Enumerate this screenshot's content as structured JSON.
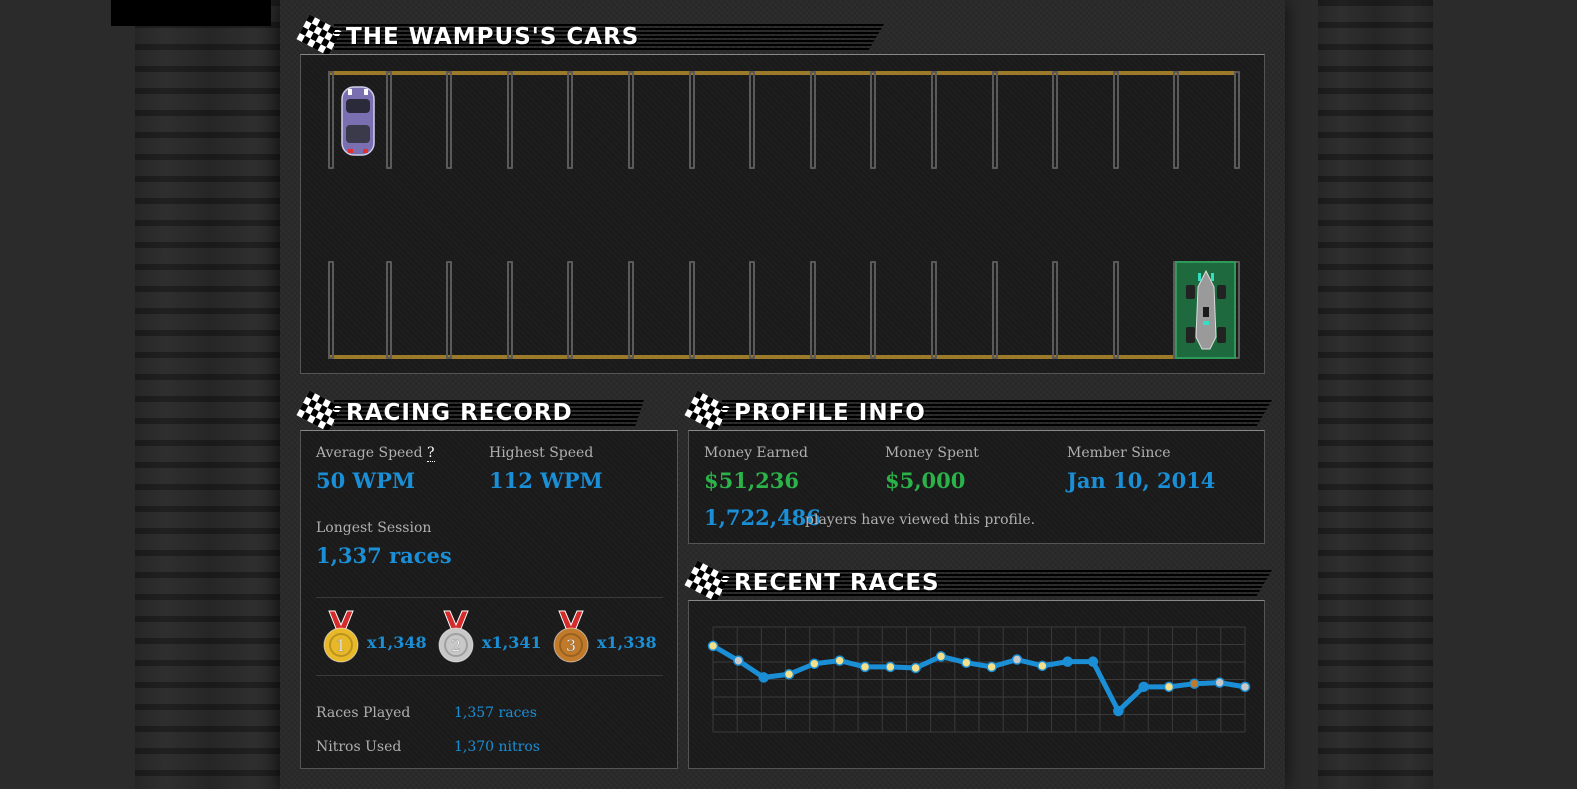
{
  "garage": {
    "title": "The Wampus's Cars",
    "slots_per_row": 15
  },
  "racing_record": {
    "title": "Racing Record",
    "avg_speed_label": "Average Speed",
    "avg_speed_help": "?",
    "avg_speed_value": "50 WPM",
    "highest_speed_label": "Highest Speed",
    "highest_speed_value": "112 WPM",
    "longest_session_label": "Longest Session",
    "longest_session_value": "1,337 races",
    "medals": [
      {
        "place": "1",
        "count": "x1,348",
        "color": "#e8b828"
      },
      {
        "place": "2",
        "count": "x1,341",
        "color": "#c8c8c8"
      },
      {
        "place": "3",
        "count": "x1,338",
        "color": "#c07a2a"
      }
    ],
    "races_played_label": "Races Played",
    "races_played_value": "1,357 races",
    "nitros_used_label": "Nitros Used",
    "nitros_used_value": "1,370 nitros"
  },
  "profile_info": {
    "title": "Profile Info",
    "money_earned_label": "Money Earned",
    "money_earned_value": "$51,236",
    "money_spent_label": "Money Spent",
    "money_spent_value": "$5,000",
    "member_since_label": "Member Since",
    "member_since_value": "Jan 10, 2014",
    "views_value": "1,722,486",
    "views_text": "players have viewed this profile."
  },
  "recent_races": {
    "title": "Recent Races"
  },
  "chart_data": {
    "type": "line",
    "x": [
      1,
      2,
      3,
      4,
      5,
      6,
      7,
      8,
      9,
      10,
      11,
      12,
      13,
      14,
      15,
      16,
      17,
      18,
      19,
      20,
      21,
      22
    ],
    "series": [
      {
        "values": [
          82,
          68,
          52,
          55,
          65,
          68,
          62,
          62,
          61,
          72,
          66,
          62,
          69,
          63,
          67,
          67,
          20,
          43,
          43,
          46,
          47,
          43
        ]
      }
    ],
    "point_colors": [
      "#f4e08a",
      "#c8c8c8",
      "#1b8fd6",
      "#f4e08a",
      "#f4e08a",
      "#f4e08a",
      "#f4e08a",
      "#f4e08a",
      "#f4e08a",
      "#f4e08a",
      "#f4e08a",
      "#f4e08a",
      "#c8c8c8",
      "#f4e08a",
      "#1b8fd6",
      "#1b8fd6",
      "#1b8fd6",
      "#1b8fd6",
      "#f4e08a",
      "#c07a2a",
      "#c8c8c8",
      "#c8c8c8"
    ],
    "ylim": [
      0,
      100
    ],
    "grid": true,
    "line_color": "#1b8fd6"
  }
}
